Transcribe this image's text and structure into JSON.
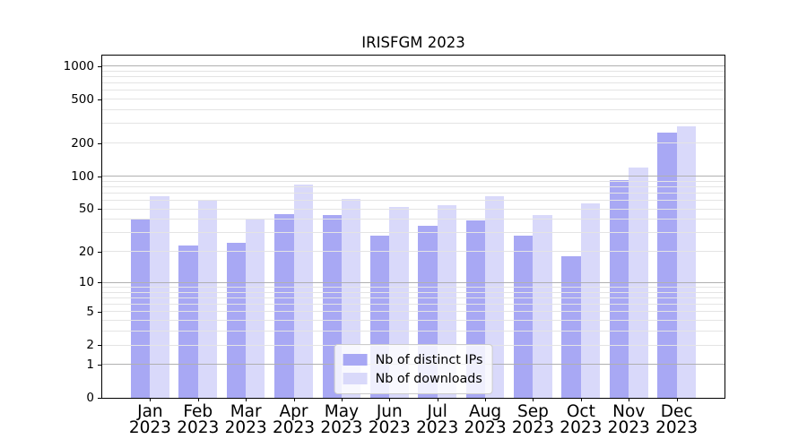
{
  "chart_data": {
    "type": "bar",
    "title": "IRISFGM 2023",
    "categories": [
      "Jan 2023",
      "Feb 2023",
      "Mar 2023",
      "Apr 2023",
      "May 2023",
      "Jun 2023",
      "Jul 2023",
      "Aug 2023",
      "Sep 2023",
      "Oct 2023",
      "Nov 2023",
      "Dec 2023"
    ],
    "series": [
      {
        "name": "Nb of distinct IPs",
        "color": "#a8a8f4",
        "values": [
          40,
          23,
          24,
          45,
          44,
          28,
          35,
          39,
          28,
          18,
          92,
          250
        ]
      },
      {
        "name": "Nb of downloads",
        "color": "#d9d9fa",
        "values": [
          66,
          61,
          40,
          83,
          62,
          52,
          54,
          65,
          44,
          56,
          120,
          283
        ]
      }
    ],
    "xlabel": "",
    "ylabel": "",
    "y_axis": {
      "scale": "log10(value+1)",
      "ticks": [
        1000,
        500,
        200,
        100,
        50,
        20,
        10,
        5,
        2,
        1,
        0
      ],
      "top_value": 1240,
      "major_gridlines": [
        1,
        10,
        100,
        1000
      ],
      "minor_gridlines": [
        2,
        3,
        4,
        5,
        6,
        7,
        8,
        9,
        20,
        30,
        40,
        50,
        60,
        70,
        80,
        90,
        200,
        300,
        400,
        500,
        600,
        700,
        800,
        900
      ]
    },
    "legend": {
      "position": "lower center",
      "entries": [
        "Nb of distinct IPs",
        "Nb of downloads"
      ]
    },
    "grid": true,
    "colors": {
      "major_grid": "#b0b0b0",
      "minor_grid": "#e4e4e4",
      "spine": "#000000",
      "background": "#ffffff"
    }
  }
}
